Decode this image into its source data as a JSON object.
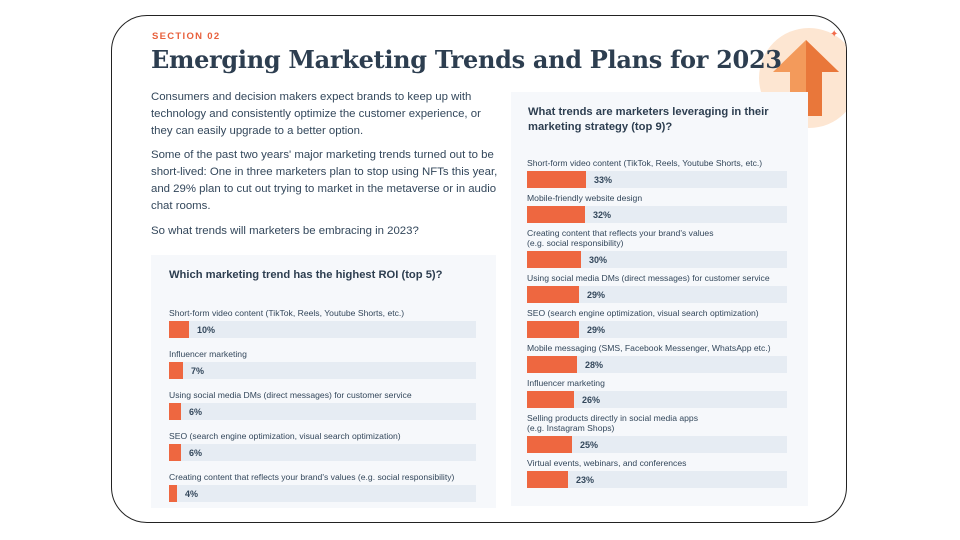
{
  "header": {
    "section": "SECTION 02",
    "title": "Emerging Marketing Trends and Plans for 2023"
  },
  "body": {
    "p1": "Consumers and decision makers expect brands to keep up with technology and consistently optimize the customer experience, or they can easily upgrade to a better option.",
    "p2": "Some of the past two years' major marketing trends turned out to be short-lived: One in three marketers plan to stop using NFTs this year, and 29% plan to cut out trying to market in the metaverse or in audio chat rooms.",
    "p3": "So what trends will marketers be embracing in 2023?"
  },
  "colors": {
    "accent": "#ee6740",
    "track": "#e6ecf3",
    "card": "#f6f8fb",
    "heading": "#2d3e50",
    "section": "#e8603c"
  },
  "chart_data": [
    {
      "type": "bar",
      "orientation": "horizontal",
      "title": "Which marketing trend has the highest ROI (top 5)?",
      "categories": [
        "Short-form video content (TikTok, Reels, Youtube Shorts, etc.)",
        "Influencer marketing",
        "Using social media DMs (direct messages) for customer service",
        "SEO (search engine optimization, visual search optimization)",
        "Creating content that reflects your brand's values (e.g. social responsibility)"
      ],
      "values": [
        10,
        7,
        6,
        6,
        4
      ],
      "labels": [
        "10%",
        "7%",
        "6%",
        "6%",
        "4%"
      ],
      "xlim": [
        0,
        100
      ],
      "unit": "%"
    },
    {
      "type": "bar",
      "orientation": "horizontal",
      "title": "What trends are marketers leveraging in their marketing strategy (top 9)?",
      "categories": [
        "Short-form video content (TikTok, Reels, Youtube Shorts, etc.)",
        "Mobile-friendly website design",
        "Creating content that reflects your brand's values\n(e.g. social responsibility)",
        "Using social media DMs (direct messages) for customer service",
        "SEO (search engine optimization, visual search optimization)",
        "Mobile messaging (SMS, Facebook Messenger, WhatsApp etc.)",
        "Influencer marketing",
        "Selling products directly in social media apps\n(e.g. Instagram Shops)",
        "Virtual events, webinars, and conferences"
      ],
      "values": [
        33,
        32,
        30,
        29,
        29,
        28,
        26,
        25,
        23
      ],
      "labels": [
        "33%",
        "32%",
        "30%",
        "29%",
        "29%",
        "28%",
        "26%",
        "25%",
        "23%"
      ],
      "xlim": [
        0,
        100
      ],
      "unit": "%"
    }
  ]
}
